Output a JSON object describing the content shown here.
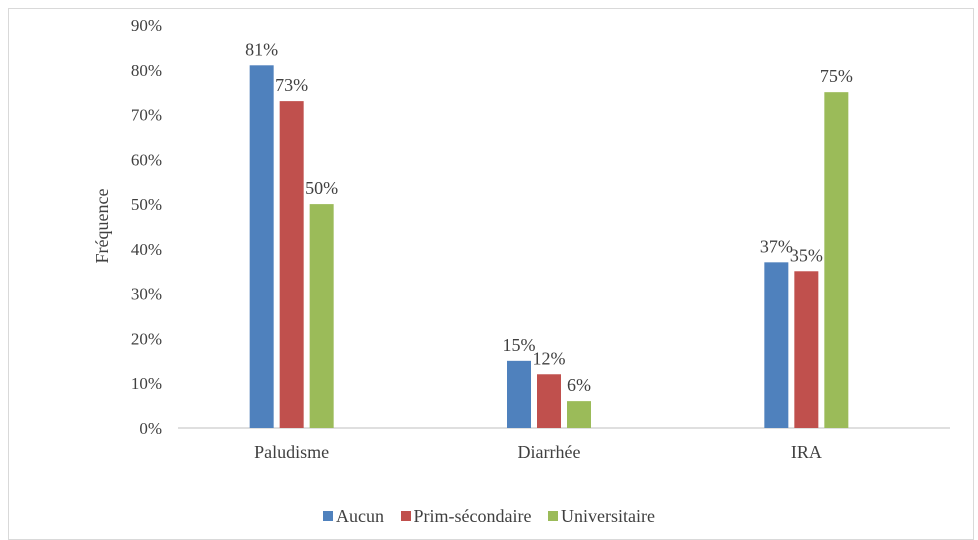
{
  "chart_data": {
    "type": "bar",
    "categories": [
      "Paludisme",
      "Diarrhée",
      "IRA"
    ],
    "series": [
      {
        "name": "Aucun",
        "values": [
          81,
          15,
          37
        ],
        "labels": [
          "81%",
          "15%",
          "37%"
        ],
        "color": "#4f81bd"
      },
      {
        "name": "Prim-sécondaire",
        "values": [
          73,
          12,
          35
        ],
        "labels": [
          "73%",
          "12%",
          "35%"
        ],
        "color": "#c0504d"
      },
      {
        "name": "Universitaire",
        "values": [
          50,
          6,
          75
        ],
        "labels": [
          "50%",
          "6%",
          "75%"
        ],
        "color": "#9bbb59"
      }
    ],
    "ylabel": "Fréquence",
    "ylim": [
      0,
      90
    ],
    "yticks": [
      "0%",
      "10%",
      "20%",
      "30%",
      "40%",
      "50%",
      "60%",
      "70%",
      "80%",
      "90%"
    ],
    "legend_position": "bottom",
    "grid": false
  }
}
